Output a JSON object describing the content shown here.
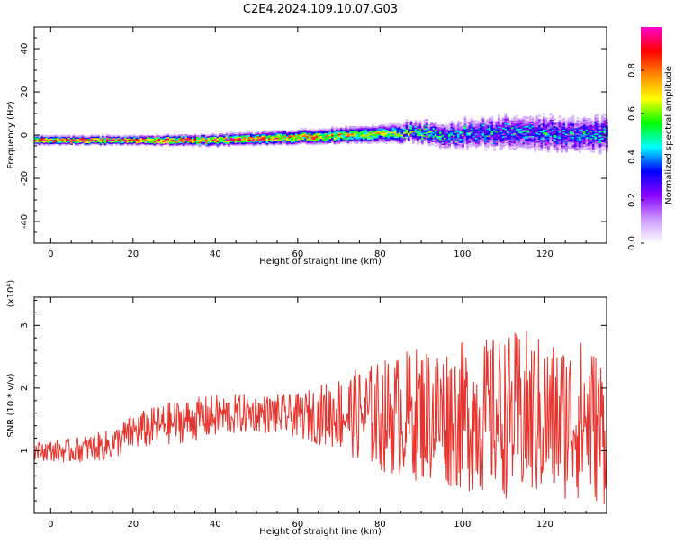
{
  "title": "C2E4.2024.109.10.07.G03",
  "chart_data": [
    {
      "type": "heatmap",
      "xlabel": "Height of straight line (km)",
      "ylabel": "Frequency (Hz)",
      "xlim": [
        -4,
        135
      ],
      "ylim": [
        -50,
        50
      ],
      "x_ticks": [
        0,
        20,
        40,
        60,
        80,
        100,
        120
      ],
      "y_ticks": [
        -40,
        -20,
        0,
        20,
        40
      ],
      "colorbar": {
        "label": "Normalized spectral amplitude",
        "ticks": [
          0.0,
          0.2,
          0.4,
          0.6,
          0.8
        ],
        "tick_labels": [
          "0.0",
          "0.2",
          "0.4",
          "0.6",
          "0.8"
        ],
        "range": [
          0,
          1
        ],
        "colormap": [
          "#ffffff",
          "#cc99ff",
          "#8800ff",
          "#0000ff",
          "#00ffff",
          "#00ff00",
          "#ffff00",
          "#ff8800",
          "#ff0000",
          "#ff00cc"
        ]
      },
      "band": {
        "x": [
          -4,
          0,
          20,
          40,
          60,
          80,
          90,
          100,
          110,
          120,
          135
        ],
        "center_hz": [
          -2,
          -2,
          -2,
          -2,
          -0.5,
          1,
          1.5,
          1,
          2,
          1,
          1
        ],
        "half_width_hz": [
          1.5,
          1.5,
          1.5,
          2,
          2.5,
          3,
          4,
          5,
          6,
          6.5,
          6.5
        ],
        "peak_amplitude": [
          0.95,
          0.95,
          0.95,
          0.9,
          0.8,
          0.7,
          0.55,
          0.5,
          0.45,
          0.45,
          0.45
        ]
      }
    },
    {
      "type": "line",
      "xlabel": "Height of straight line (km)",
      "ylabel": "SNR (10 * v/v)",
      "multiplier_label": "(x10⁴)",
      "xlim": [
        -4,
        135
      ],
      "ylim": [
        0,
        3.45
      ],
      "x_ticks": [
        0,
        20,
        40,
        60,
        80,
        100,
        120
      ],
      "y_ticks": [
        1,
        2,
        3
      ],
      "color": "#e8322b",
      "trend": {
        "x": [
          -4,
          5,
          15,
          20,
          30,
          40,
          50,
          60,
          70,
          80,
          90,
          100,
          110,
          115,
          120,
          130,
          135
        ],
        "mean": [
          1.0,
          1.0,
          1.1,
          1.3,
          1.45,
          1.55,
          1.6,
          1.55,
          1.6,
          1.55,
          1.6,
          1.55,
          1.55,
          1.55,
          1.5,
          1.5,
          1.3
        ],
        "amplitude": [
          0.15,
          0.2,
          0.25,
          0.3,
          0.35,
          0.35,
          0.3,
          0.35,
          0.6,
          0.9,
          1.1,
          1.2,
          1.3,
          1.4,
          1.3,
          1.3,
          1.2
        ]
      }
    }
  ]
}
